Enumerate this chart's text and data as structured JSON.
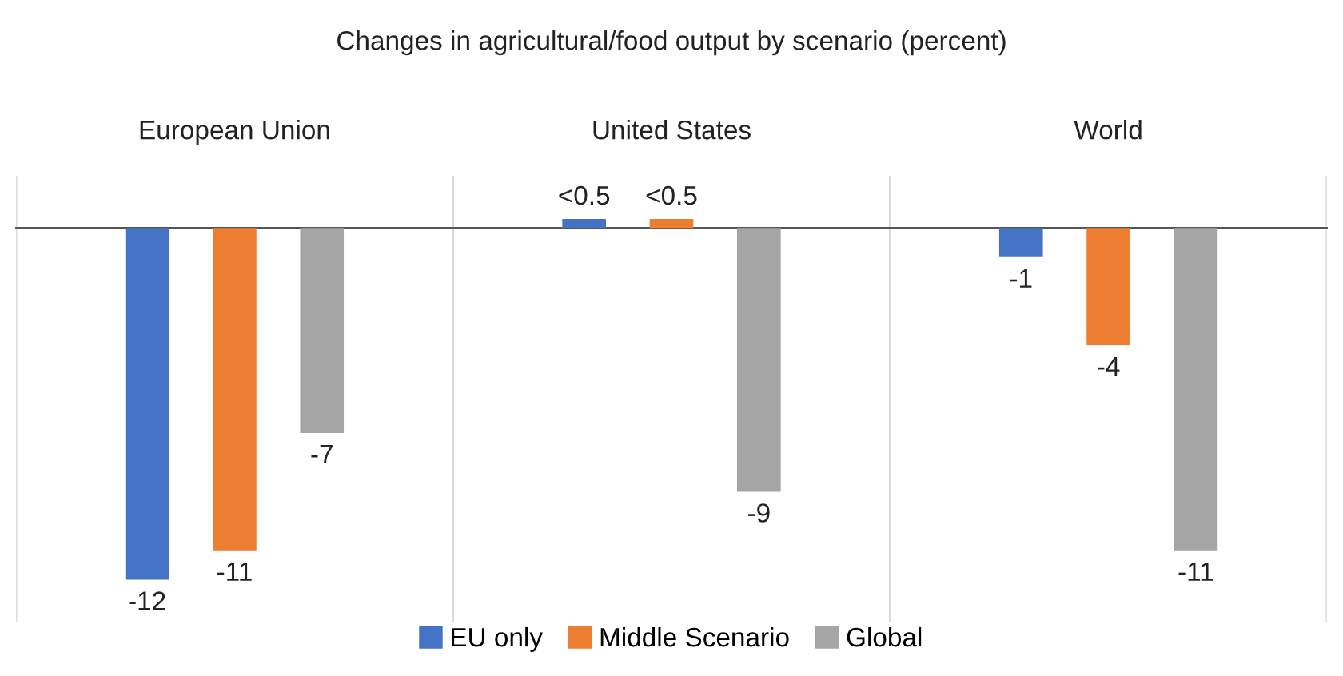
{
  "chart_data": {
    "type": "bar",
    "title": "Changes in agricultural/food output by scenario (percent)",
    "categories": [
      "European Union",
      "United States",
      "World"
    ],
    "series": [
      {
        "name": "EU only",
        "color": "#4472c4",
        "values": [
          -12,
          0.3,
          -1
        ],
        "value_labels": [
          "-12",
          "<0.5",
          "-1"
        ]
      },
      {
        "name": "Middle Scenario",
        "color": "#ed7d31",
        "values": [
          -11,
          0.3,
          -4
        ],
        "value_labels": [
          "-11",
          "<0.5",
          "-4"
        ]
      },
      {
        "name": "Global",
        "color": "#a5a5a5",
        "values": [
          -7,
          -9,
          -11
        ],
        "value_labels": [
          "-7",
          "-9",
          "-11"
        ]
      }
    ],
    "grid": "x",
    "legend": "bottom"
  }
}
